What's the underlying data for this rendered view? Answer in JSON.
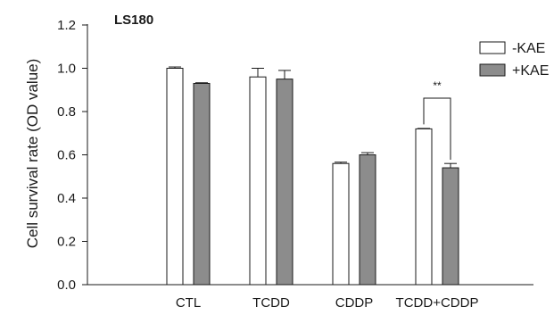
{
  "chart_data": {
    "type": "bar",
    "panel_label": "LS180",
    "ylabel": "Cell survival rate (OD value)",
    "ylim": [
      0,
      1.2
    ],
    "yticks": [
      "0.0",
      "0.2",
      "0.4",
      "0.6",
      "0.8",
      "1.0",
      "1.2"
    ],
    "categories": [
      "CTL",
      "TCDD",
      "CDDP",
      "TCDD+CDDP"
    ],
    "series": [
      {
        "name": "-KAE",
        "color": "#ffffff",
        "values": [
          1.0,
          0.96,
          0.56,
          0.72
        ],
        "errors": [
          0.006,
          0.04,
          0.006,
          0.002
        ]
      },
      {
        "name": "+KAE",
        "color": "#8c8c8c",
        "values": [
          0.93,
          0.95,
          0.6,
          0.54
        ],
        "errors": [
          0.003,
          0.04,
          0.01,
          0.02
        ]
      }
    ],
    "annotations": [
      {
        "text": "**",
        "category_index": 3
      }
    ],
    "legend_position": "top-right",
    "grid": false
  }
}
